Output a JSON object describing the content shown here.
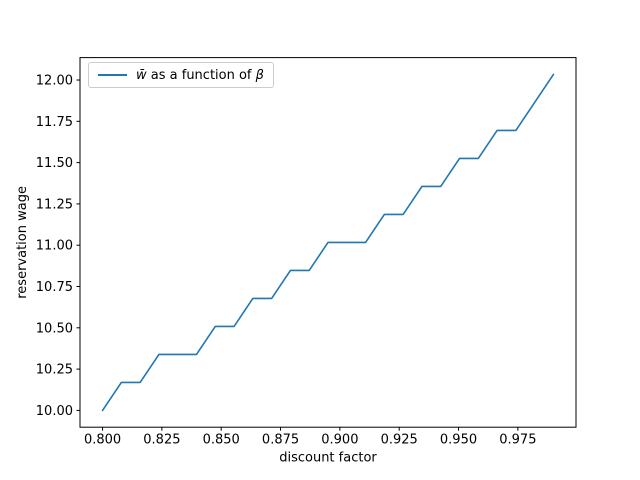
{
  "chart_data": {
    "type": "line",
    "title": "",
    "xlabel": "discount factor",
    "ylabel": "reservation wage",
    "legend": {
      "position": "upper left",
      "label_math_w": "w̄",
      "label_text": " as a function of ",
      "label_math_beta": "β",
      "full_label": "w̄ as a function of β"
    },
    "line_color": "#1f77b4",
    "background_color": "#ffffff",
    "grid": false,
    "x": [
      0.8,
      0.80792,
      0.81583,
      0.82375,
      0.83167,
      0.83958,
      0.8475,
      0.85542,
      0.86333,
      0.87125,
      0.87917,
      0.88708,
      0.895,
      0.90292,
      0.91083,
      0.91875,
      0.92667,
      0.93458,
      0.9425,
      0.95042,
      0.95833,
      0.96625,
      0.97417,
      0.98208,
      0.99
    ],
    "y": [
      10.0,
      10.169,
      10.169,
      10.339,
      10.339,
      10.339,
      10.508,
      10.508,
      10.678,
      10.678,
      10.847,
      10.847,
      11.017,
      11.017,
      11.017,
      11.186,
      11.186,
      11.356,
      11.356,
      11.525,
      11.525,
      11.695,
      11.695,
      11.864,
      12.034
    ],
    "xlim": [
      0.7905,
      0.9995
    ],
    "ylim": [
      9.8983,
      12.1357
    ],
    "xticks": [
      {
        "value": 0.8,
        "label": "0.800"
      },
      {
        "value": 0.825,
        "label": "0.825"
      },
      {
        "value": 0.85,
        "label": "0.850"
      },
      {
        "value": 0.875,
        "label": "0.875"
      },
      {
        "value": 0.9,
        "label": "0.900"
      },
      {
        "value": 0.925,
        "label": "0.925"
      },
      {
        "value": 0.95,
        "label": "0.950"
      },
      {
        "value": 0.975,
        "label": "0.975"
      }
    ],
    "yticks": [
      {
        "value": 10.0,
        "label": "10.00"
      },
      {
        "value": 10.25,
        "label": "10.25"
      },
      {
        "value": 10.5,
        "label": "10.50"
      },
      {
        "value": 10.75,
        "label": "10.75"
      },
      {
        "value": 11.0,
        "label": "11.00"
      },
      {
        "value": 11.25,
        "label": "11.25"
      },
      {
        "value": 11.5,
        "label": "11.50"
      },
      {
        "value": 11.75,
        "label": "11.75"
      },
      {
        "value": 12.0,
        "label": "12.00"
      }
    ]
  }
}
